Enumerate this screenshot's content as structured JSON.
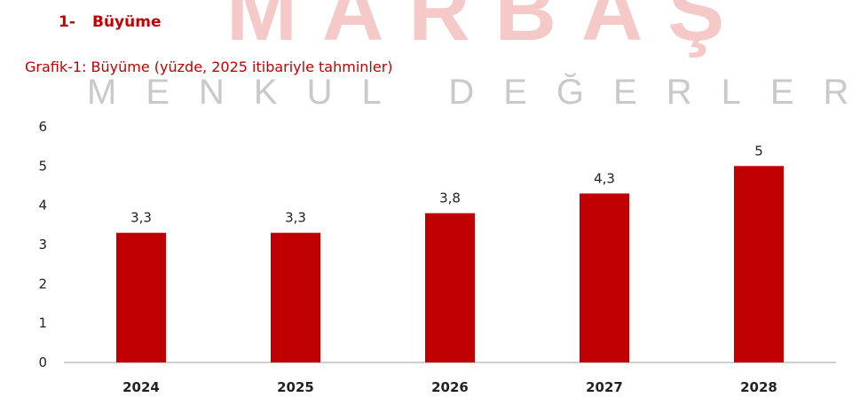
{
  "watermark": {
    "brand": "MARBAŞ",
    "tagline": "MENKUL DEĞERLER"
  },
  "section": {
    "number": "1-",
    "title": "Büyüme"
  },
  "chart_data": {
    "type": "bar",
    "title": "Grafik-1: Büyüme (yüzde, 2025 itibariyle tahminler)",
    "categories": [
      "2024",
      "2025",
      "2026",
      "2027",
      "2028"
    ],
    "values": [
      3.3,
      3.3,
      3.8,
      4.3,
      5
    ],
    "value_labels": [
      "3,3",
      "3,3",
      "3,8",
      "4,3",
      "5"
    ],
    "yticks": [
      0,
      1,
      2,
      3,
      4,
      5,
      6
    ],
    "ylim": [
      0,
      6
    ],
    "grid": false,
    "bar_color": "#c00000",
    "xlabel": "",
    "ylabel": ""
  }
}
